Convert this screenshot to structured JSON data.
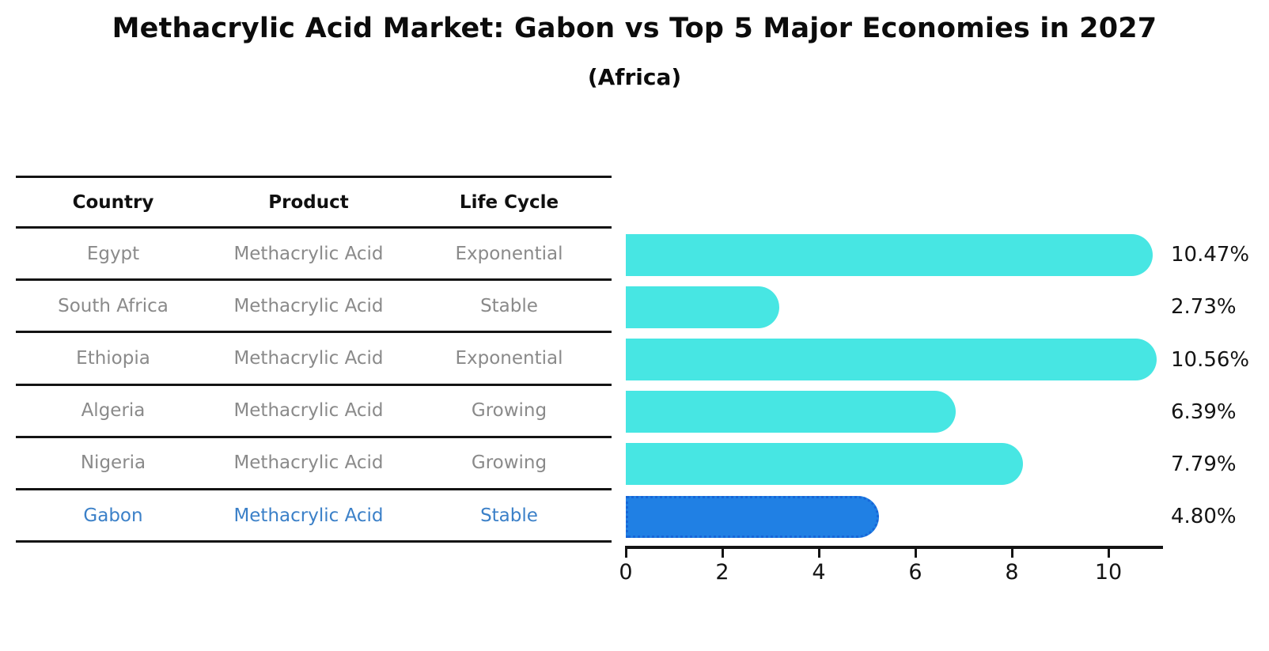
{
  "title": "Methacrylic Acid Market: Gabon vs Top 5 Major Economies in 2027",
  "subtitle": "(Africa)",
  "table": {
    "headers": [
      "Country",
      "Product",
      "Life Cycle"
    ],
    "rows": [
      {
        "country": "Egypt",
        "product": "Methacrylic Acid",
        "life_cycle": "Exponential",
        "highlight": false
      },
      {
        "country": "South Africa",
        "product": "Methacrylic Acid",
        "life_cycle": "Stable",
        "highlight": false
      },
      {
        "country": "Ethiopia",
        "product": "Methacrylic Acid",
        "life_cycle": "Exponential",
        "highlight": false
      },
      {
        "country": "Algeria",
        "product": "Methacrylic Acid",
        "life_cycle": "Growing",
        "highlight": false
      },
      {
        "country": "Nigeria",
        "product": "Methacrylic Acid",
        "life_cycle": "Growing",
        "highlight": false
      },
      {
        "country": "Gabon",
        "product": "Methacrylic Acid",
        "life_cycle": "Stable",
        "highlight": true
      }
    ]
  },
  "chart_data": {
    "type": "bar",
    "orientation": "horizontal",
    "title": "Methacrylic Acid Market: Gabon vs Top 5 Major Economies in 2027",
    "subtitle": "(Africa)",
    "categories": [
      "Egypt",
      "South Africa",
      "Ethiopia",
      "Algeria",
      "Nigeria",
      "Gabon"
    ],
    "values": [
      10.47,
      2.73,
      10.56,
      6.39,
      7.79,
      4.8
    ],
    "value_labels": [
      "10.47%",
      "2.73%",
      "10.56%",
      "6.39%",
      "7.79%",
      "4.80%"
    ],
    "x_ticks": [
      0,
      2,
      4,
      6,
      8,
      10
    ],
    "xlim": [
      0,
      11.1
    ],
    "grid": false,
    "legend": false,
    "highlight_index": 5,
    "colors": {
      "bar": "#47E6E3",
      "highlight_bar": "#2080E4",
      "highlight_border": "#1766D8",
      "highlight_text": "#3B80C8",
      "table_text": "#8A8A8A",
      "axis_text": "#141414"
    }
  }
}
